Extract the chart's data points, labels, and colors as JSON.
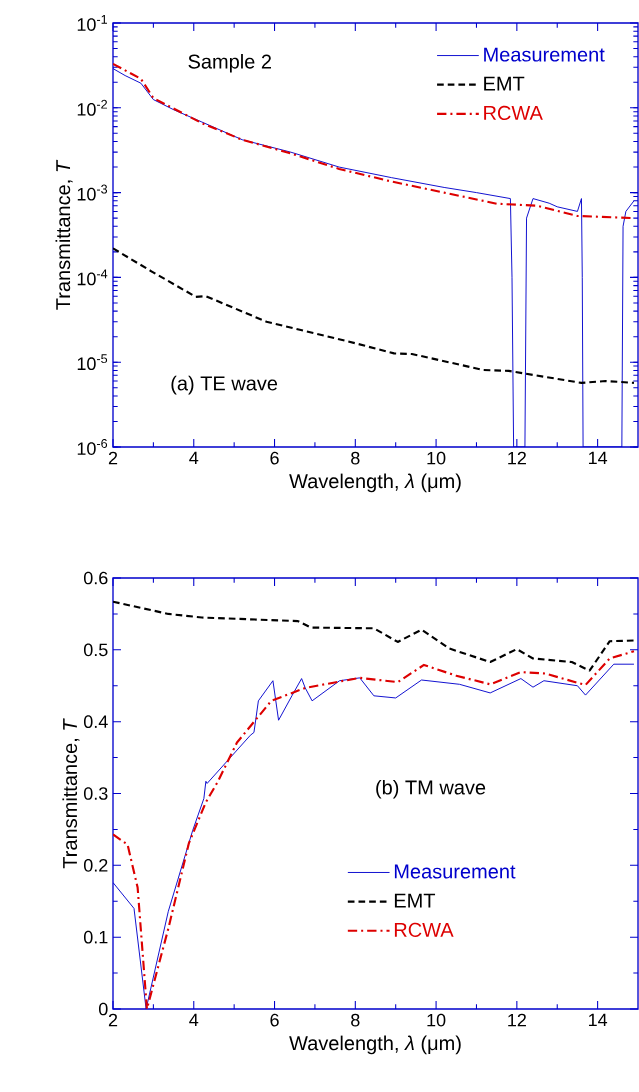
{
  "chart_data": [
    {
      "type": "line",
      "xlabel": "Wavelength, *λ* (μm)",
      "ylabel": "Transmittance, *T*",
      "log": "y",
      "xlim": [
        2,
        15
      ],
      "ylim": [
        1e-06,
        0.1
      ],
      "xticks": [
        2,
        4,
        6,
        8,
        10,
        12,
        14
      ],
      "yticks": [
        {
          "value": 1e-06,
          "label": "10$^{-6}$"
        },
        {
          "value": 1e-05,
          "label": "10$^{-5}$"
        },
        {
          "value": 0.0001,
          "label": "10$^{-4}$"
        },
        {
          "value": 0.001,
          "label": "10$^{-3}$"
        },
        {
          "value": 0.01,
          "label": "10$^{-2}$"
        },
        {
          "value": 0.1,
          "label": "10$^{-1}$"
        }
      ],
      "legend": "top right",
      "annotations": [
        "Sample 2",
        "(a) TE wave"
      ],
      "series": [
        {
          "name": "Measurement",
          "color": "#0000cc",
          "line_style": "solid",
          "x": [
            2.0,
            2.3,
            2.69,
            3.0,
            3.5,
            4.2,
            5.2,
            6.4,
            7.6,
            8.9,
            10.2,
            11.0,
            11.84,
            11.88,
            11.92,
            12.2,
            12.24,
            12.4,
            12.8,
            13.0,
            13.5,
            13.6,
            13.62,
            13.64,
            14.6,
            14.63,
            14.7,
            14.9
          ],
          "values": [
            0.029,
            0.024,
            0.0195,
            0.0125,
            0.0095,
            0.0068,
            0.0042,
            0.003,
            0.002,
            0.0015,
            0.00115,
            0.001,
            0.00085,
            0.0001,
            1e-06,
            1e-06,
            0.0005,
            0.00085,
            0.00075,
            0.00068,
            0.0006,
            0.00085,
            0.0001,
            1e-06,
            1e-06,
            0.0004,
            0.0006,
            0.0008
          ]
        },
        {
          "name": "EMT",
          "color": "#000000",
          "line_style": "dashed",
          "x": [
            2.0,
            2.95,
            4.05,
            4.3,
            5.8,
            7.78,
            8.96,
            9.4,
            11.17,
            11.8,
            13.6,
            14.2,
            14.9
          ],
          "values": [
            0.00022,
            0.000118,
            5.9e-05,
            6e-05,
            3e-05,
            1.78e-05,
            1.27e-05,
            1.25e-05,
            8.1e-06,
            7.9e-06,
            5.7e-06,
            6e-06,
            5.7e-06
          ]
        },
        {
          "name": "RCWA",
          "color": "#dd0000",
          "line_style": "dashdot",
          "x": [
            2.0,
            2.69,
            3.0,
            4.2,
            5.2,
            6.4,
            7.6,
            8.9,
            10.2,
            11.5,
            12.5,
            13.5,
            14.9
          ],
          "values": [
            0.033,
            0.022,
            0.013,
            0.0066,
            0.0042,
            0.0029,
            0.0019,
            0.00135,
            0.001,
            0.00074,
            0.0007,
            0.00053,
            0.0005
          ]
        }
      ]
    },
    {
      "type": "line",
      "xlabel": "Wavelength, *λ* (μm)",
      "ylabel": "Transmittance, *T*",
      "xlim": [
        2,
        15
      ],
      "ylim": [
        0,
        0.6
      ],
      "xticks": [
        2,
        4,
        6,
        8,
        10,
        12,
        14
      ],
      "yticks": [
        {
          "value": 0,
          "label": "0"
        },
        {
          "value": 0.1,
          "label": "0.1"
        },
        {
          "value": 0.2,
          "label": "0.2"
        },
        {
          "value": 0.3,
          "label": "0.3"
        },
        {
          "value": 0.4,
          "label": "0.4"
        },
        {
          "value": 0.5,
          "label": "0.5"
        },
        {
          "value": 0.6,
          "label": "0.6"
        }
      ],
      "legend": "bottom right",
      "annotations": [
        "(b) TM wave"
      ],
      "series": [
        {
          "name": "Measurement",
          "color": "#0000cc",
          "line_style": "solid",
          "x": [
            2.0,
            2.52,
            2.82,
            3.37,
            3.97,
            4.25,
            4.3,
            4.33,
            5.4,
            5.49,
            5.6,
            5.96,
            6.1,
            6.43,
            6.67,
            6.76,
            6.93,
            7.61,
            8.11,
            8.46,
            9.0,
            9.64,
            10.58,
            11.34,
            12.1,
            12.4,
            12.67,
            13.5,
            13.7,
            14.4,
            14.9
          ],
          "values": [
            0.176,
            0.14,
            0.0,
            0.136,
            0.248,
            0.293,
            0.317,
            0.314,
            0.381,
            0.385,
            0.429,
            0.457,
            0.402,
            0.436,
            0.46,
            0.447,
            0.429,
            0.457,
            0.461,
            0.436,
            0.433,
            0.458,
            0.452,
            0.44,
            0.46,
            0.448,
            0.457,
            0.45,
            0.437,
            0.48,
            0.48
          ]
        },
        {
          "name": "EMT",
          "color": "#000000",
          "line_style": "dashed",
          "x": [
            2.0,
            3.37,
            4.2,
            6.58,
            6.9,
            8.46,
            9.05,
            9.64,
            10.32,
            11.34,
            12.0,
            12.4,
            13.36,
            13.8,
            14.3,
            14.9
          ],
          "values": [
            0.567,
            0.55,
            0.545,
            0.54,
            0.531,
            0.53,
            0.511,
            0.528,
            0.502,
            0.483,
            0.501,
            0.488,
            0.483,
            0.471,
            0.512,
            0.513
          ]
        },
        {
          "name": "RCWA",
          "color": "#dd0000",
          "line_style": "dashdot",
          "x": [
            2.0,
            2.36,
            2.61,
            2.84,
            3.37,
            3.88,
            4.3,
            4.6,
            5.07,
            5.92,
            6.76,
            8.11,
            9.05,
            9.7,
            10.5,
            11.34,
            12.1,
            12.7,
            13.7,
            14.3,
            14.9
          ],
          "values": [
            0.243,
            0.229,
            0.169,
            0.0,
            0.112,
            0.231,
            0.288,
            0.317,
            0.371,
            0.429,
            0.447,
            0.461,
            0.455,
            0.479,
            0.464,
            0.452,
            0.469,
            0.467,
            0.451,
            0.488,
            0.498
          ]
        }
      ]
    }
  ]
}
